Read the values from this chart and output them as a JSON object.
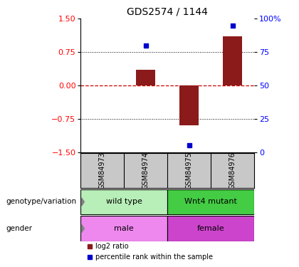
{
  "title": "GDS2574 / 1144",
  "samples": [
    "GSM84973",
    "GSM84974",
    "GSM84975",
    "GSM84976"
  ],
  "log2_ratio": [
    0.0,
    0.35,
    -0.9,
    1.1
  ],
  "percentile_rank": [
    null,
    80,
    5,
    95
  ],
  "ylim": [
    -1.5,
    1.5
  ],
  "yticks_left": [
    -1.5,
    -0.75,
    0,
    0.75,
    1.5
  ],
  "yticks_right": [
    0,
    25,
    50,
    75,
    100
  ],
  "bar_color": "#8B1A1A",
  "dot_color": "#0000CD",
  "zero_line_color": "#CC0000",
  "grid_color": "#000000",
  "groups": [
    {
      "label": "wild type",
      "samples": [
        0,
        1
      ],
      "color": "#B8EEB8"
    },
    {
      "label": "Wnt4 mutant",
      "samples": [
        2,
        3
      ],
      "color": "#44CC44"
    }
  ],
  "genders": [
    {
      "label": "male",
      "samples": [
        0,
        1
      ],
      "color": "#EE88EE"
    },
    {
      "label": "female",
      "samples": [
        2,
        3
      ],
      "color": "#CC44CC"
    }
  ],
  "row_labels": [
    "genotype/variation",
    "gender"
  ],
  "background_color": "#FFFFFF",
  "plot_bg_color": "#FFFFFF",
  "sample_bg_color": "#C8C8C8"
}
